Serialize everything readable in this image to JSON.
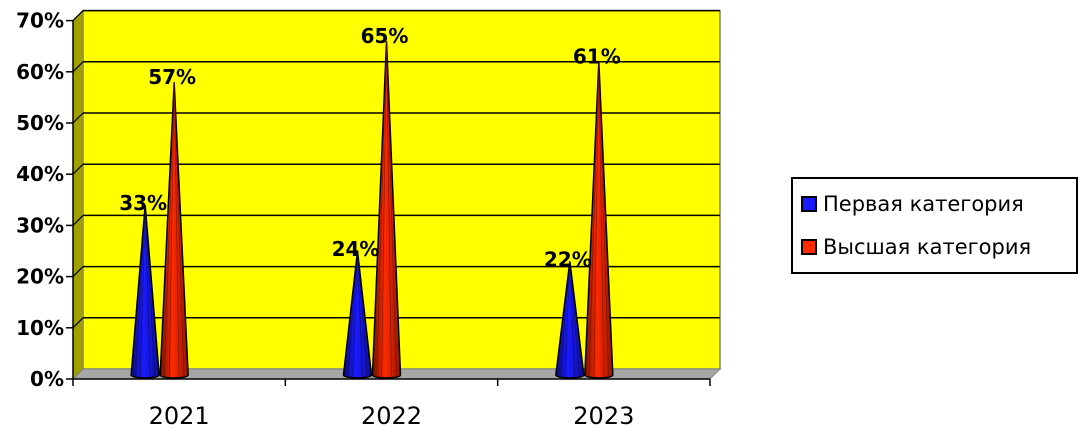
{
  "chart_data": {
    "type": "bar",
    "bar_shape": "cone",
    "categories": [
      "2021",
      "2022",
      "2023"
    ],
    "series": [
      {
        "name": "Первая категория",
        "values": [
          33,
          24,
          22
        ],
        "labels": [
          "33%",
          "24%",
          "22%"
        ],
        "color": "#1a1aff"
      },
      {
        "name": "Высшая категория",
        "values": [
          57,
          65,
          61
        ],
        "labels": [
          "57%",
          "65%",
          "61%"
        ],
        "color": "#ff2a00"
      }
    ],
    "y_ticks": [
      "0%",
      "10%",
      "20%",
      "30%",
      "40%",
      "50%",
      "60%",
      "70%"
    ],
    "ylim": [
      0,
      70
    ],
    "grid": true,
    "legend_position": "right",
    "plot_background": "#ffff00"
  }
}
